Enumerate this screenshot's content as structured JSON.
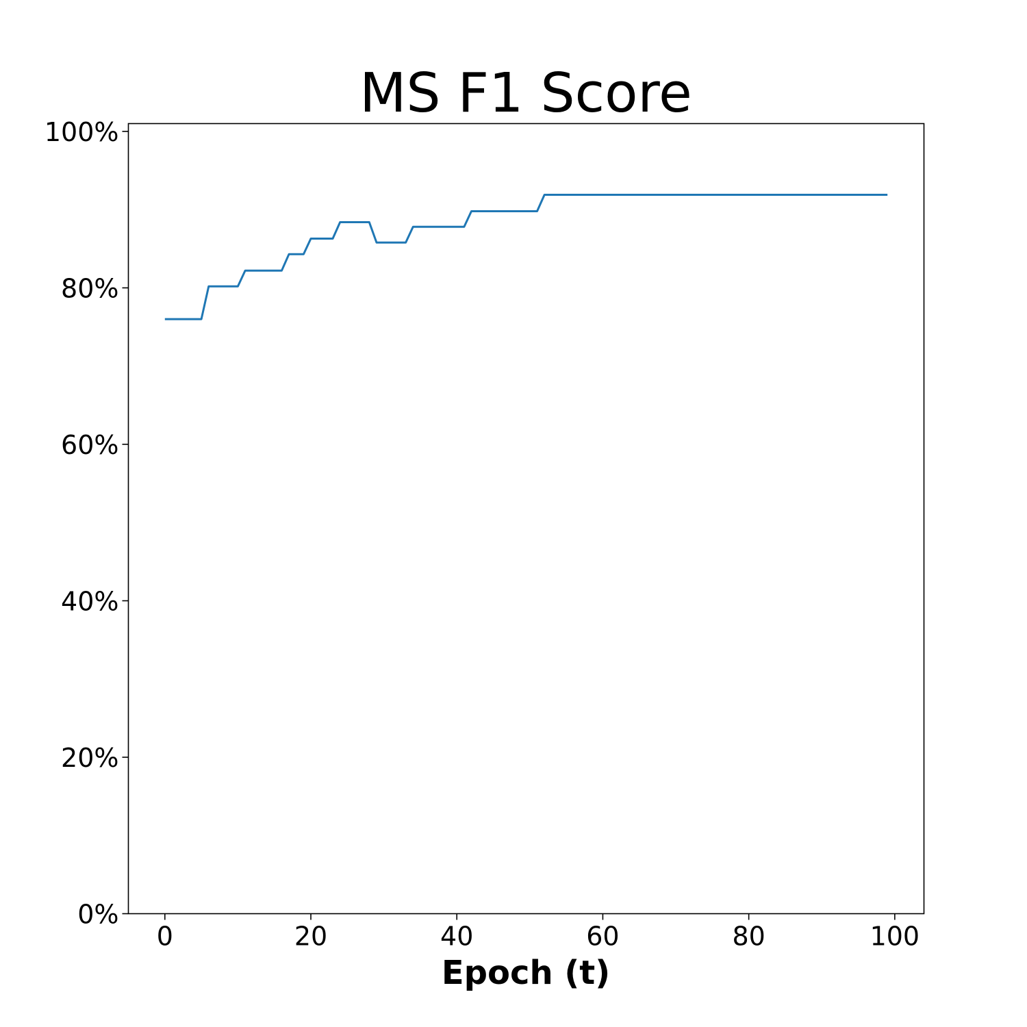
{
  "chart_data": {
    "type": "line",
    "title": "MS F1 Score",
    "xlabel": "Epoch (t)",
    "ylabel": "",
    "xlim": [
      -5,
      104
    ],
    "ylim": [
      0,
      101
    ],
    "x_ticks": [
      0,
      20,
      40,
      60,
      80,
      100
    ],
    "x_tick_labels": [
      "0",
      "20",
      "40",
      "60",
      "80",
      "100"
    ],
    "y_ticks": [
      0,
      20,
      40,
      60,
      80,
      100
    ],
    "y_tick_labels": [
      "0%",
      "20%",
      "40%",
      "60%",
      "80%",
      "100%"
    ],
    "grid": false,
    "series": [
      {
        "color": "#1f77b4",
        "x": [
          0,
          5,
          6,
          10,
          11,
          16,
          17,
          19,
          20,
          23,
          24,
          28,
          29,
          33,
          34,
          41,
          42,
          51,
          52,
          99
        ],
        "y": [
          76,
          76,
          80.2,
          80.2,
          82.2,
          82.2,
          84.3,
          84.3,
          86.3,
          86.3,
          88.4,
          88.4,
          85.8,
          85.8,
          87.8,
          87.8,
          89.8,
          89.8,
          91.9,
          91.9
        ]
      }
    ]
  }
}
